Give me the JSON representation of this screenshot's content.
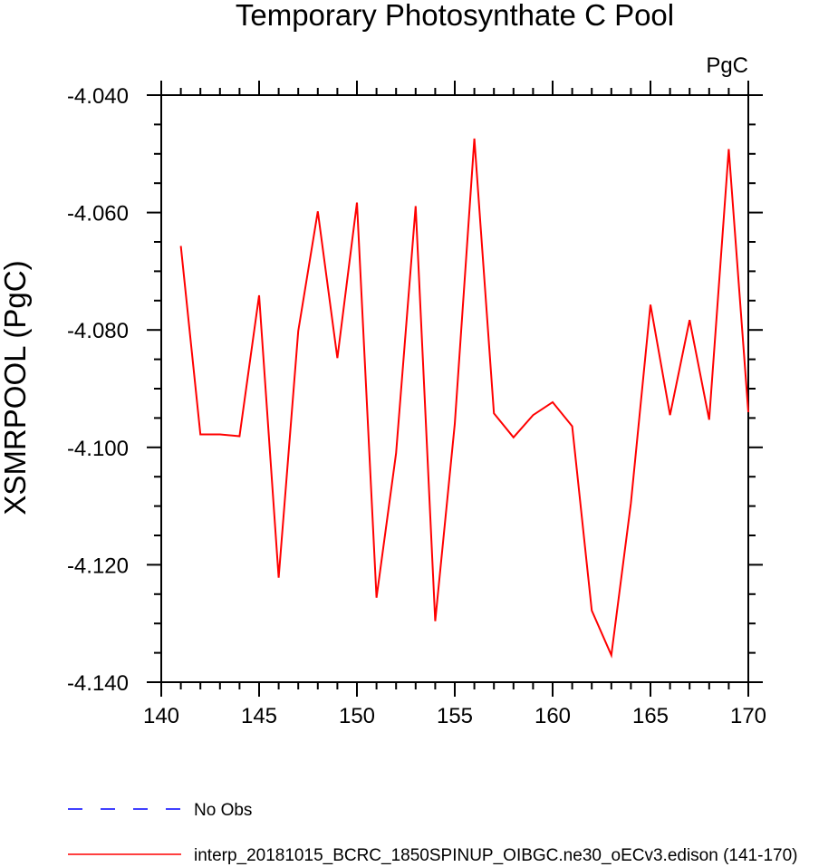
{
  "chart_data": {
    "type": "line",
    "title": "Temporary Photosynthate C Pool",
    "units_label": "PgC",
    "xlabel": "",
    "ylabel": "XSMRPOOL  (PgC)",
    "xlim": [
      140,
      170
    ],
    "ylim": [
      -4.14,
      -4.04
    ],
    "x_ticks": [
      "140",
      "145",
      "150",
      "155",
      "160",
      "165",
      "170"
    ],
    "y_ticks": [
      "-4.040",
      "-4.060",
      "-4.080",
      "-4.100",
      "-4.120",
      "-4.140"
    ],
    "grid": false,
    "legend_position": "bottom",
    "series": [
      {
        "name": "interp_20181015_BCRC_1850SPINUP_OIBGC.ne30_oECv3.edison (141-170)",
        "color": "#ff0000",
        "style": "solid",
        "x": [
          141,
          142,
          143,
          144,
          145,
          146,
          147,
          148,
          149,
          150,
          151,
          152,
          153,
          154,
          155,
          156,
          157,
          158,
          159,
          160,
          161,
          162,
          163,
          164,
          165,
          166,
          167,
          168,
          169,
          170
        ],
        "y": [
          -4.0657,
          -4.0978,
          -4.0978,
          -4.0981,
          -4.0741,
          -4.1222,
          -4.0802,
          -4.0598,
          -4.0848,
          -4.0583,
          -4.1256,
          -4.101,
          -4.0589,
          -4.1296,
          -4.096,
          -4.0474,
          -4.0942,
          -4.0983,
          -4.0945,
          -4.0923,
          -4.0964,
          -4.1278,
          -4.1354,
          -4.1095,
          -4.0757,
          -4.0945,
          -4.0783,
          -4.0953,
          -4.0492,
          -4.094
        ]
      }
    ],
    "legend": [
      {
        "label": "No Obs",
        "color": "#0000ff",
        "style": "dashed"
      },
      {
        "label": "interp_20181015_BCRC_1850SPINUP_OIBGC.ne30_oECv3.edison (141-170)",
        "color": "#ff0000",
        "style": "solid"
      }
    ]
  }
}
